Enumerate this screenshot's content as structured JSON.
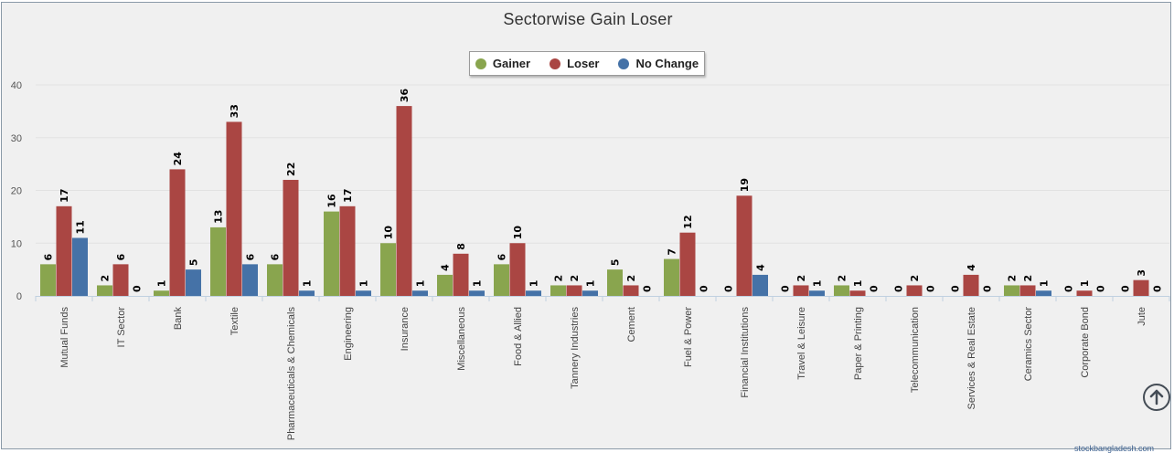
{
  "chart_data": {
    "type": "bar",
    "title": "Sectorwise Gain Loser",
    "xlabel": "",
    "ylabel": "",
    "ylim": [
      0,
      40
    ],
    "yticks": [
      0,
      10,
      20,
      30,
      40
    ],
    "grid": true,
    "legend_position": "top-center",
    "categories": [
      "Mutual Funds",
      "IT Sector",
      "Bank",
      "Textile",
      "Pharmaceuticals & Chemicals",
      "Engineering",
      "Insurance",
      "Miscellaneous",
      "Food & Allied",
      "Tannery Industries",
      "Cement",
      "Fuel & Power",
      "Financial Institutions",
      "Travel & Leisure",
      "Paper & Printing",
      "Telecommunication",
      "Services & Real Estate",
      "Ceramics Sector",
      "Corporate Bond",
      "Jute"
    ],
    "series": [
      {
        "name": "Gainer",
        "color": "#89a54e",
        "values": [
          6,
          2,
          1,
          13,
          6,
          16,
          10,
          4,
          6,
          2,
          5,
          7,
          0,
          0,
          2,
          0,
          0,
          2,
          0,
          0
        ]
      },
      {
        "name": "Loser",
        "color": "#aa4643",
        "values": [
          17,
          6,
          24,
          33,
          22,
          17,
          36,
          8,
          10,
          2,
          2,
          12,
          19,
          2,
          1,
          2,
          4,
          2,
          1,
          3
        ]
      },
      {
        "name": "No Change",
        "color": "#4572a7",
        "values": [
          11,
          0,
          5,
          6,
          1,
          1,
          1,
          1,
          1,
          1,
          0,
          0,
          4,
          1,
          0,
          0,
          0,
          1,
          0,
          0
        ]
      }
    ]
  },
  "ui": {
    "credit_text": "stockbangladesh.com",
    "scroll_top_icon": "arrow-up-circle-icon"
  }
}
